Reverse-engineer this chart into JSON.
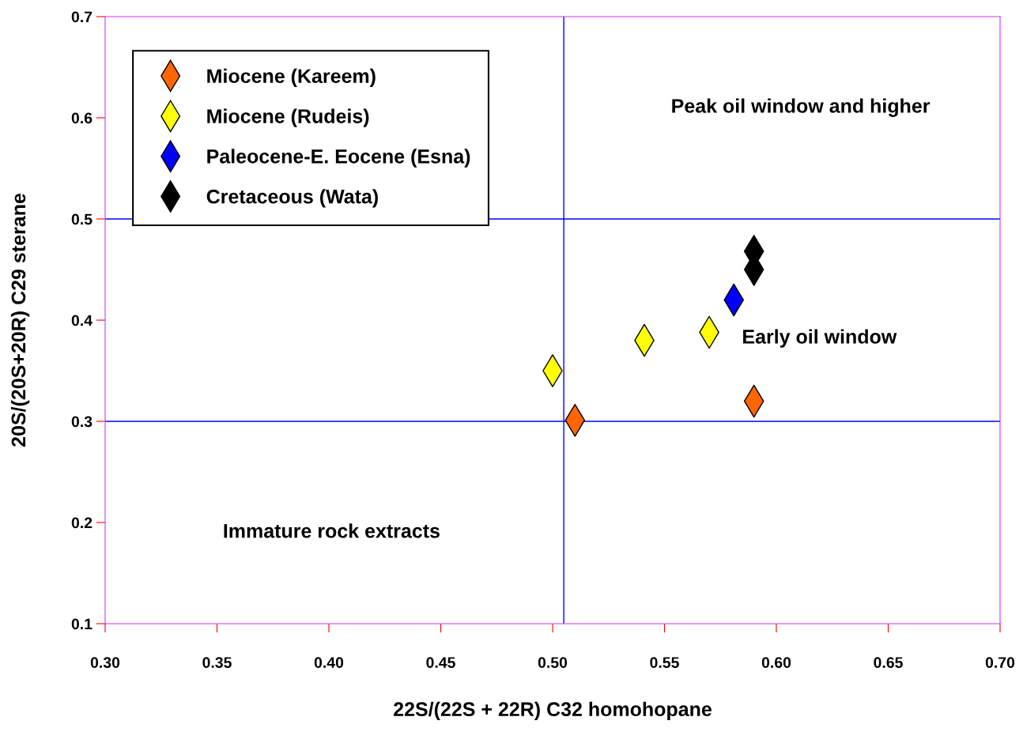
{
  "chart_data": {
    "type": "scatter",
    "xlabel": "22S/(22S + 22R) C32 homohopane",
    "ylabel": "20S/(20S+20R) C29 sterane",
    "series": [
      {
        "name": "Miocene (Kareem)",
        "color": "#ff6600",
        "x": [
          0.51,
          0.59
        ],
        "values": [
          0.301,
          0.32
        ]
      },
      {
        "name": "Miocene (Rudeis)",
        "color": "#ffff00",
        "x": [
          0.5,
          0.541,
          0.57
        ],
        "values": [
          0.35,
          0.38,
          0.388
        ]
      },
      {
        "name": "Paleocene-E. Eocene (Esna)",
        "color": "#0000ff",
        "x": [
          0.581
        ],
        "values": [
          0.42
        ]
      },
      {
        "name": "Cretaceous (Wata)",
        "color": "#000000",
        "x": [
          0.59,
          0.59
        ],
        "values": [
          0.468,
          0.45
        ]
      }
    ],
    "marker": "diamond",
    "legend": "top left",
    "grid": false,
    "xlim": [
      0.3,
      0.7
    ],
    "ylim": [
      0.1,
      0.7
    ],
    "xticks": [
      {
        "value": 0.3,
        "label": "0.30"
      },
      {
        "value": 0.35,
        "label": "0.35"
      },
      {
        "value": 0.4,
        "label": "0.40"
      },
      {
        "value": 0.45,
        "label": "0.45"
      },
      {
        "value": 0.5,
        "label": "0.50"
      },
      {
        "value": 0.55,
        "label": "0.55"
      },
      {
        "value": 0.6,
        "label": "0.60"
      },
      {
        "value": 0.65,
        "label": "0.65"
      },
      {
        "value": 0.7,
        "label": "0.70"
      }
    ],
    "yticks": [
      0.1,
      0.2,
      0.3,
      0.4,
      0.5,
      0.6,
      0.7
    ],
    "ref_lines": [
      {
        "axis": "x",
        "value": 0.505,
        "color": "#0000ff"
      },
      {
        "axis": "y",
        "value": 0.3,
        "color": "#0000ff"
      },
      {
        "axis": "y",
        "value": 0.5,
        "color": "#0000ff"
      }
    ],
    "annotations": [
      "Peak oil window and higher",
      "Early oil window",
      "Immature rock extracts"
    ]
  }
}
